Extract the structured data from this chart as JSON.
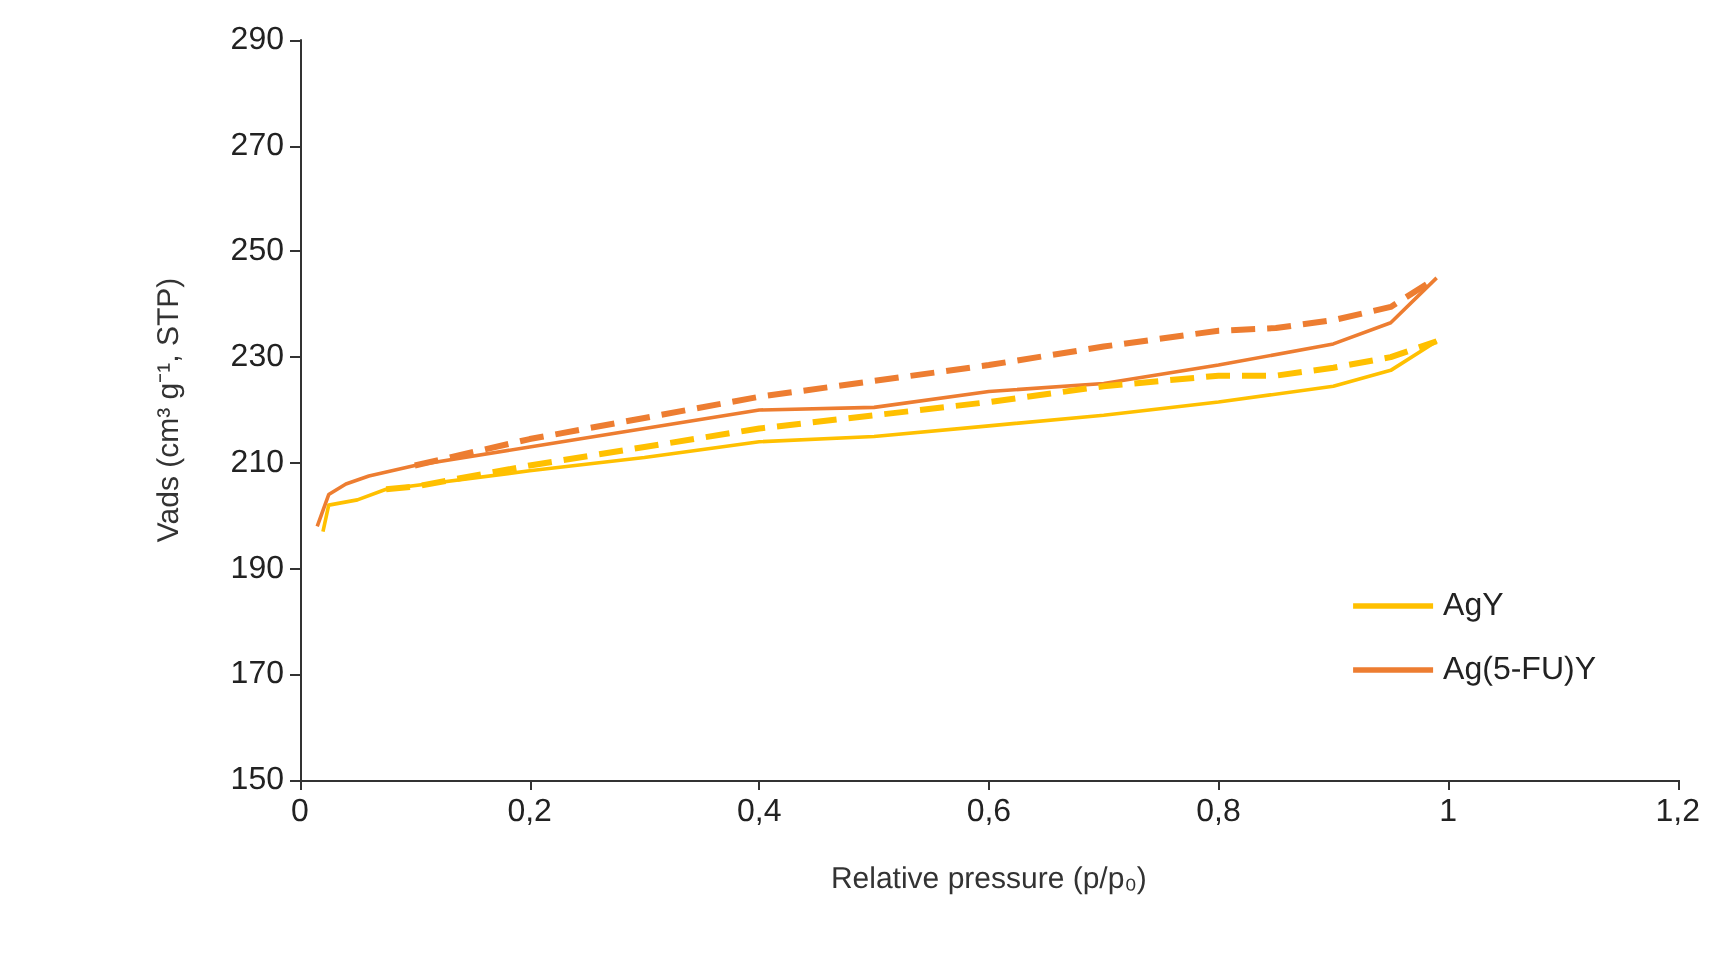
{
  "chart_data": {
    "type": "line",
    "xlabel": "Relative pressure (p/p₀)",
    "ylabel": "Vads (cm³ g⁻¹, STP)",
    "xlim": [
      0,
      1.2
    ],
    "xticks": [
      0,
      {
        "value": 0.2,
        "label": "0,2"
      },
      {
        "value": 0.4,
        "label": "0,4"
      },
      {
        "value": 0.6,
        "label": "0,6"
      },
      {
        "value": 0.8,
        "label": "0,8"
      },
      1,
      {
        "value": 1.2,
        "label": "1,2"
      }
    ],
    "ylim": [
      150,
      290
    ],
    "yticks": [
      150,
      170,
      190,
      210,
      230,
      250,
      270,
      290
    ],
    "grid": false,
    "legend": "right",
    "marker": "none",
    "series": [
      {
        "name": "AgY",
        "color": "#ffc000",
        "line_style": "solid",
        "x": [
          0.02,
          0.025,
          0.05,
          0.075,
          0.2,
          0.3,
          0.4,
          0.5,
          0.6,
          0.7,
          0.8,
          0.9,
          0.95,
          0.99
        ],
        "values": [
          197,
          202,
          203,
          205,
          208.5,
          211,
          214,
          215,
          217,
          219,
          221.5,
          224.5,
          227.5,
          233
        ]
      },
      {
        "name": "Ag(5-FU)Y",
        "color": "#ed7d31",
        "line_style": "solid",
        "x": [
          0.015,
          0.025,
          0.04,
          0.06,
          0.1,
          0.2,
          0.3,
          0.4,
          0.5,
          0.6,
          0.7,
          0.8,
          0.9,
          0.95,
          0.99
        ],
        "values": [
          198,
          204,
          206,
          207.5,
          209.5,
          213,
          216.5,
          220,
          220.5,
          223.5,
          225,
          228.5,
          232.5,
          236.5,
          245
        ]
      },
      {
        "color": "#ffc000",
        "line_style": "dashed",
        "x": [
          0.075,
          0.1,
          0.2,
          0.3,
          0.4,
          0.5,
          0.6,
          0.7,
          0.8,
          0.85,
          0.9,
          0.95,
          0.99
        ],
        "values": [
          205,
          205.5,
          209.5,
          213,
          216.5,
          219,
          221.5,
          224.5,
          226.5,
          226.5,
          228,
          230,
          233
        ]
      },
      {
        "color": "#ed7d31",
        "line_style": "dashed",
        "x": [
          0.1,
          0.2,
          0.3,
          0.4,
          0.5,
          0.6,
          0.7,
          0.8,
          0.85,
          0.9,
          0.95,
          0.99
        ],
        "values": [
          209.5,
          214.5,
          218.5,
          222.5,
          225.5,
          228.5,
          232,
          235,
          235.5,
          237,
          239.5,
          245
        ]
      }
    ]
  }
}
